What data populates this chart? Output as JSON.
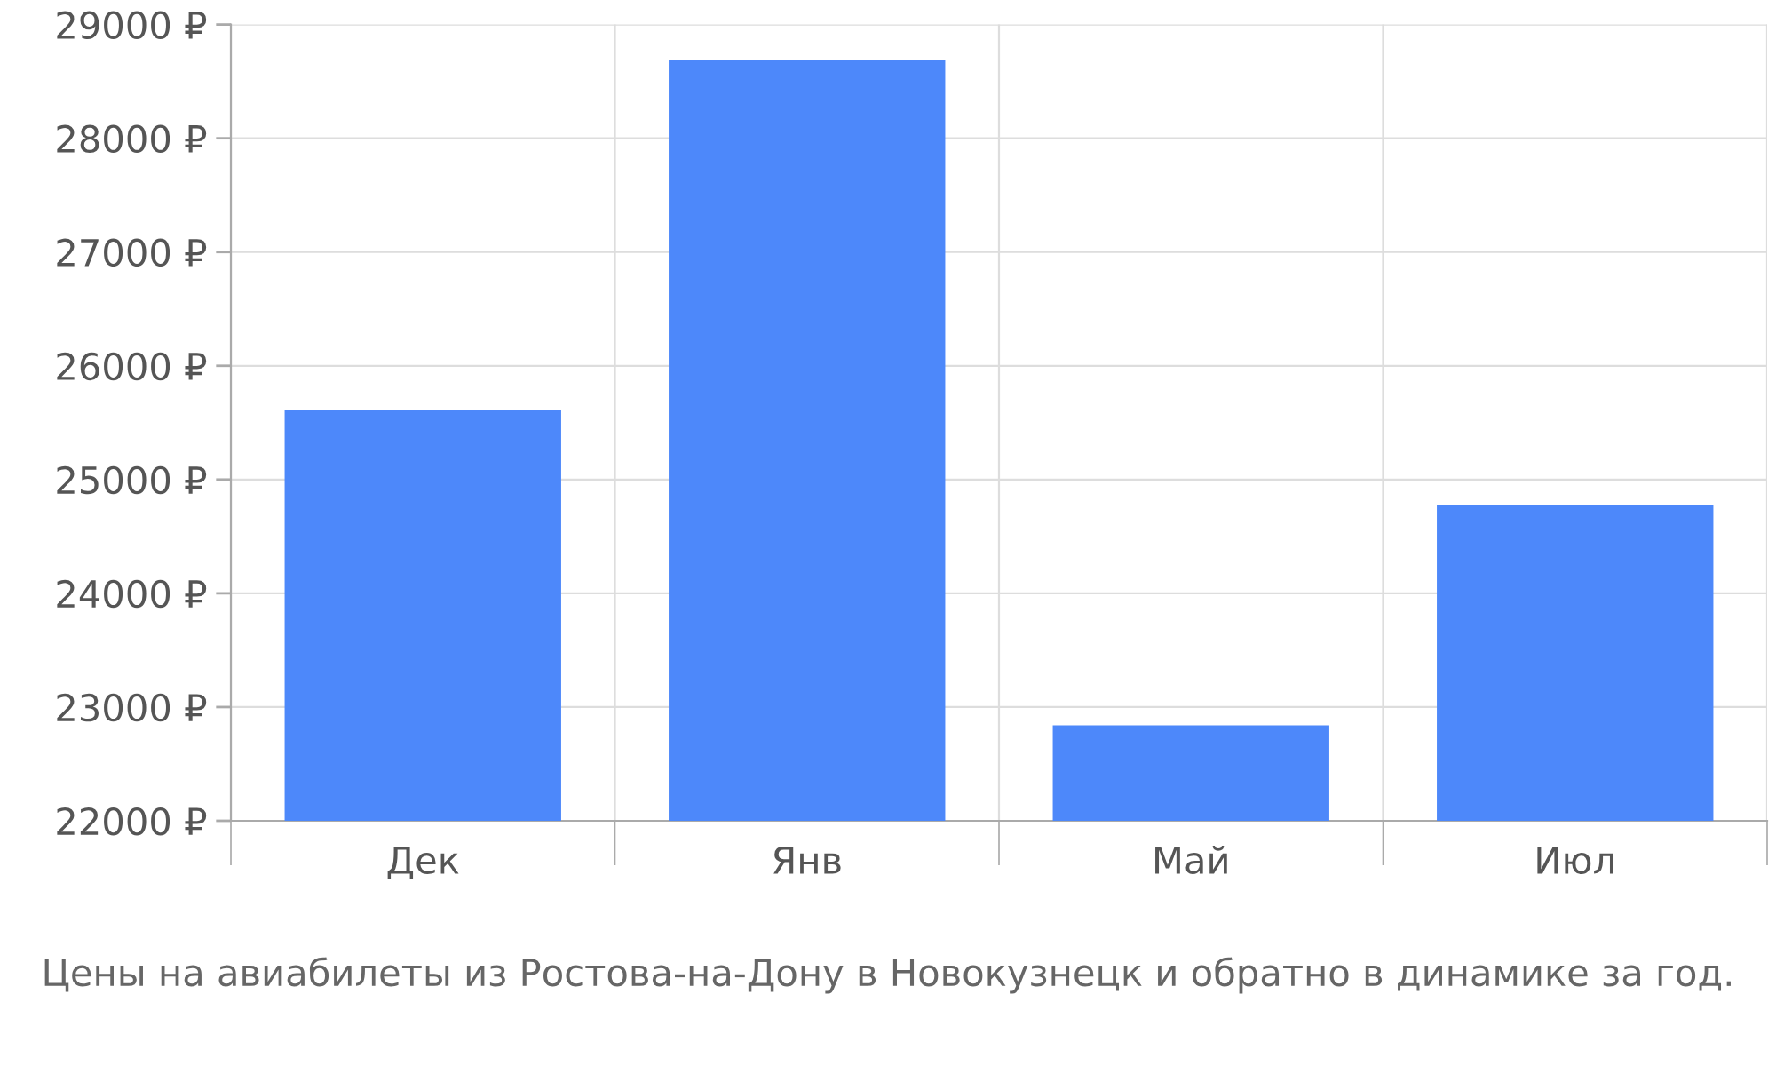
{
  "chart_data": {
    "type": "bar",
    "title": "Цены на авиабилеты из Ростова-на-Дону в Новокузнецк и обратно в динамике за год.",
    "categories": [
      "Дек",
      "Янв",
      "Май",
      "Июл"
    ],
    "values": [
      25610,
      28690,
      22840,
      24780
    ],
    "color": "#4d88fa",
    "ylim": [
      22000,
      29000
    ],
    "yticks": [
      {
        "value": 22000,
        "label": "22000 ₽"
      },
      {
        "value": 23000,
        "label": "23000 ₽"
      },
      {
        "value": 24000,
        "label": "24000 ₽"
      },
      {
        "value": 25000,
        "label": "25000 ₽"
      },
      {
        "value": 26000,
        "label": "26000 ₽"
      },
      {
        "value": 27000,
        "label": "27000 ₽"
      },
      {
        "value": 28000,
        "label": "28000 ₽"
      },
      {
        "value": 29000,
        "label": "29000 ₽"
      }
    ],
    "grid": true
  }
}
